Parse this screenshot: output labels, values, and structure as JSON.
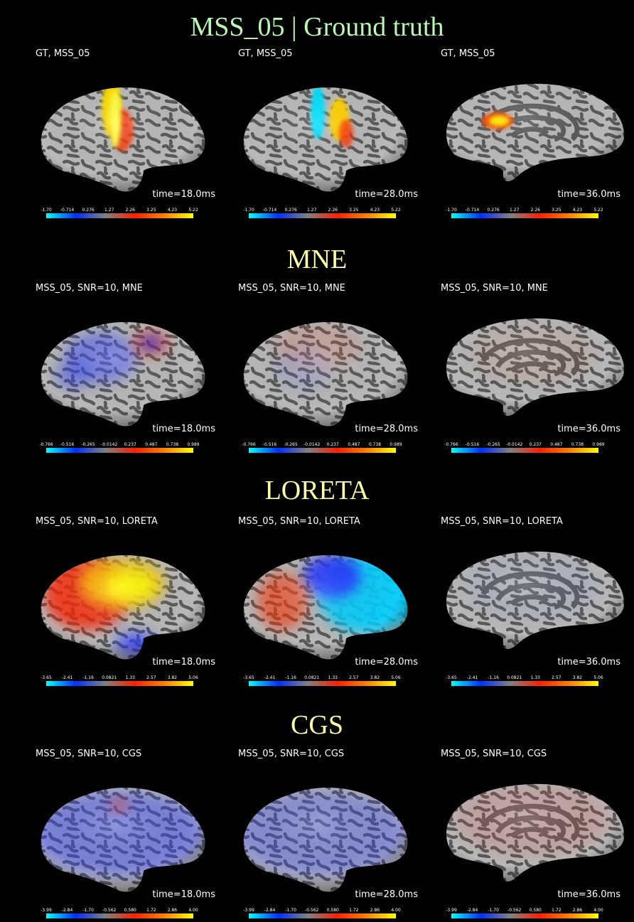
{
  "sections": [
    {
      "title": "MSS_05 | Ground truth",
      "panels": [
        {
          "label": "GT, MSS_05",
          "time": "time=18.0ms"
        },
        {
          "label": "GT, MSS_05",
          "time": "time=28.0ms"
        },
        {
          "label": "GT, MSS_05",
          "time": "time=36.0ms"
        }
      ],
      "colorbar_ticks": [
        "-1.70",
        "-0.714",
        "0.276",
        "1.27",
        "2.26",
        "3.25",
        "4.23",
        "5.22"
      ]
    },
    {
      "title": "MNE",
      "panels": [
        {
          "label": "MSS_05, SNR=10, MNE",
          "time": "time=18.0ms"
        },
        {
          "label": "MSS_05, SNR=10, MNE",
          "time": "time=28.0ms"
        },
        {
          "label": "MSS_05, SNR=10, MNE",
          "time": "time=36.0ms"
        }
      ],
      "colorbar_ticks": [
        "-0.766",
        "-0.516",
        "-0.265",
        "-0.0142",
        "0.237",
        "0.487",
        "0.738",
        "0.989"
      ]
    },
    {
      "title": "LORETA",
      "panels": [
        {
          "label": "MSS_05, SNR=10, LORETA",
          "time": "time=18.0ms"
        },
        {
          "label": "MSS_05, SNR=10, LORETA",
          "time": "time=28.0ms"
        },
        {
          "label": "MSS_05, SNR=10, LORETA",
          "time": "time=36.0ms"
        }
      ],
      "colorbar_ticks": [
        "-3.65",
        "-2.41",
        "-1.16",
        "0.0821",
        "1.33",
        "2.57",
        "3.82",
        "5.06"
      ]
    },
    {
      "title": "CGS",
      "panels": [
        {
          "label": "MSS_05, SNR=10, CGS",
          "time": "time=18.0ms"
        },
        {
          "label": "MSS_05, SNR=10, CGS",
          "time": "time=28.0ms"
        },
        {
          "label": "MSS_05, SNR=10, CGS",
          "time": "time=36.0ms"
        }
      ],
      "colorbar_ticks": [
        "-3.99",
        "-2.84",
        "-1.70",
        "-0.562",
        "0.580",
        "1.72",
        "2.86",
        "4.00"
      ]
    }
  ]
}
